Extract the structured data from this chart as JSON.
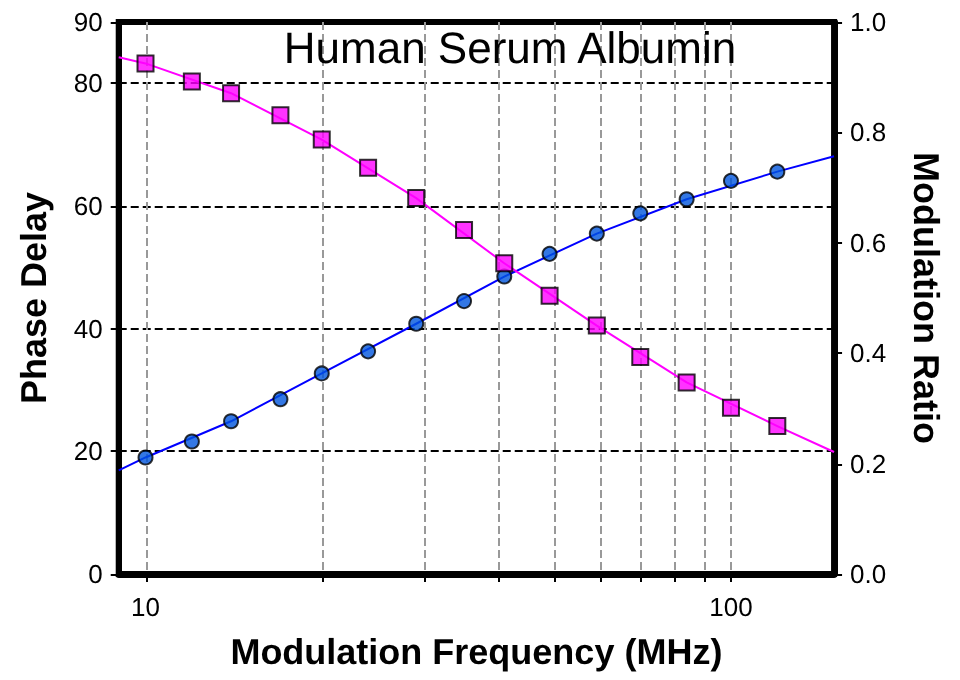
{
  "chart_data": {
    "type": "scatter",
    "title": "Human Serum Albumin",
    "xlabel": "Modulation Frequency (MHz)",
    "ylabel": "Phase Delay",
    "y2label": "Modulation Ratio",
    "log": "x",
    "grid": true,
    "x": [
      10,
      12,
      14,
      17,
      20,
      24,
      29,
      35,
      41,
      49,
      59,
      70,
      84,
      100,
      120
    ],
    "xlim": [
      9,
      150
    ],
    "xticks": [
      10,
      {
        "value": 20,
        "label": null
      },
      {
        "value": 30,
        "label": null
      },
      {
        "value": 40,
        "label": null
      },
      {
        "value": 50,
        "label": null
      },
      {
        "value": 60,
        "label": null
      },
      {
        "value": 70,
        "label": null
      },
      {
        "value": 80,
        "label": null
      },
      {
        "value": 90,
        "label": null
      },
      100
    ],
    "ylim": [
      0,
      90
    ],
    "yticks": [
      0,
      20,
      40,
      60,
      80,
      90
    ],
    "y2lim": [
      0,
      1
    ],
    "y2ticks": [
      {
        "value": 0,
        "label": "0.0"
      },
      {
        "value": 0.2,
        "label": "0.2"
      },
      {
        "value": 0.4,
        "label": "0.4"
      },
      {
        "value": 0.6,
        "label": "0.6"
      },
      {
        "value": 0.8,
        "label": "0.8"
      },
      {
        "value": 1,
        "label": "1.0"
      }
    ],
    "series": [
      {
        "type": "line",
        "color": "#0000ff",
        "marker": "none",
        "x": [
          9,
          10,
          14,
          20,
          29,
          41,
          59,
          84,
          120,
          150
        ],
        "values": [
          16.9,
          19.0,
          24.9,
          32.7,
          40.8,
          48.5,
          55.5,
          61.1,
          65.6,
          68.1
        ]
      },
      {
        "type": "line",
        "color": "#ff00ff",
        "marker": "none",
        "axis": "y2",
        "x": [
          9,
          10,
          14,
          20,
          29,
          41,
          59,
          84,
          120,
          150
        ],
        "values": [
          0.936,
          0.925,
          0.871,
          0.787,
          0.681,
          0.563,
          0.45,
          0.347,
          0.268,
          0.221
        ]
      },
      {
        "type": "scatter",
        "color": "#0055dd",
        "marker": "circle",
        "values": [
          19.0,
          21.6,
          24.9,
          28.5,
          32.7,
          36.3,
          40.8,
          44.5,
          48.5,
          52.2,
          55.5,
          58.8,
          61.1,
          64.1,
          65.6
        ]
      },
      {
        "type": "scatter",
        "color": "#ff00ff",
        "marker": "square",
        "axis": "y2",
        "values": [
          0.925,
          0.892,
          0.871,
          0.831,
          0.787,
          0.736,
          0.681,
          0.623,
          0.563,
          0.504,
          0.45,
          0.393,
          0.347,
          0.301,
          0.268
        ]
      }
    ]
  }
}
